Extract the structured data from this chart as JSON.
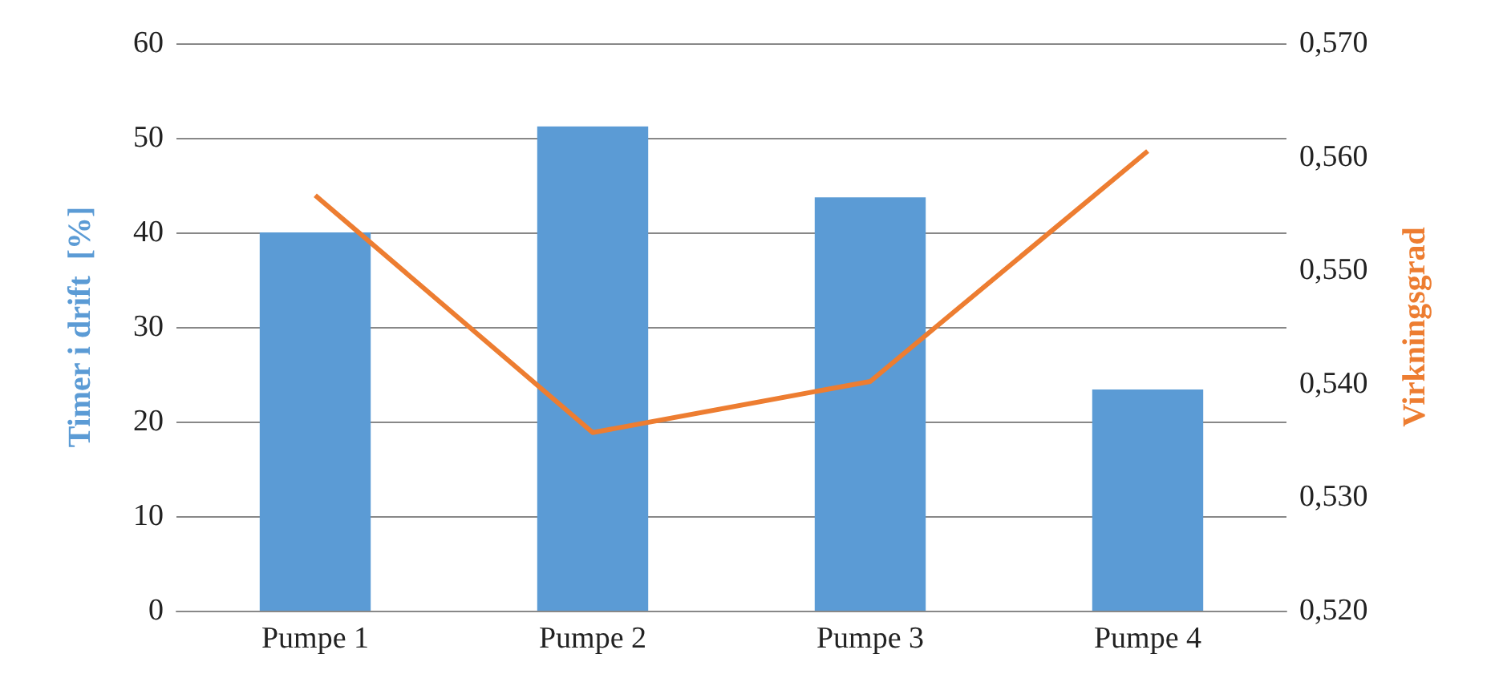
{
  "chart_data": {
    "type": "bar",
    "categories": [
      "Pumpe 1",
      "Pumpe 2",
      "Pumpe 3",
      "Pumpe 4"
    ],
    "ylabel": "Timer i drift  [%]",
    "y2label": "Virkningsgrad",
    "series": [
      {
        "color": "#5b9bd5",
        "values": [
          40.0,
          51.2,
          43.7,
          23.4
        ]
      },
      {
        "type": "line",
        "axis": "y2",
        "color": "#ed7d31",
        "values": [
          0.5566,
          0.5357,
          0.5402,
          0.5605
        ],
        "marker": "none"
      }
    ],
    "ylim": [
      0,
      60
    ],
    "yticks": [
      0,
      10,
      20,
      30,
      40,
      50,
      60
    ],
    "y2lim": [
      0.52,
      0.57
    ],
    "y2ticks": [
      {
        "value": 0.52,
        "label": "0,520"
      },
      {
        "value": 0.53,
        "label": "0,530"
      },
      {
        "value": 0.54,
        "label": "0,540"
      },
      {
        "value": 0.55,
        "label": "0,550"
      },
      {
        "value": 0.56,
        "label": "0,560"
      },
      {
        "value": 0.57,
        "label": "0,570"
      }
    ],
    "grid": "y"
  }
}
